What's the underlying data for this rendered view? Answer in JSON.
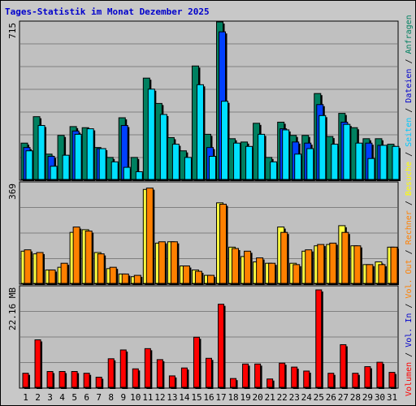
{
  "title": "Tages-Statistik im Monat Dezember 2025",
  "axis_max_labels": {
    "top": "715",
    "middle": "369",
    "bottom": "22.16 MB"
  },
  "right_labels": [
    {
      "text": "Anfragen",
      "color": "#008060"
    },
    {
      "text": "Dateien",
      "color": "#0000cc"
    },
    {
      "text": "Seiten",
      "color": "#00c8ff"
    },
    {
      "text": "Besuche",
      "color": "#ffff00"
    },
    {
      "text": "Rechner",
      "color": "#ff8000"
    },
    {
      "text": "Vol. Out",
      "color": "#ff8000"
    },
    {
      "text": "Vol. In",
      "color": "#0000cc"
    },
    {
      "text": "Volumen",
      "color": "#ff0000"
    }
  ],
  "colors": {
    "hits": "#008060",
    "files": "#0040ff",
    "pages": "#00e0ff",
    "visits": "#ffff40",
    "sites": "#ff8000",
    "volume": "#ff0000",
    "weekend": "#008060",
    "weekday": "#000000"
  },
  "chart_data": [
    {
      "type": "bar",
      "name": "requests-files-pages",
      "categories": [
        "1",
        "2",
        "3",
        "4",
        "5",
        "6",
        "7",
        "8",
        "9",
        "10",
        "11",
        "12",
        "13",
        "14",
        "15",
        "16",
        "17",
        "18",
        "19",
        "20",
        "21",
        "22",
        "23",
        "24",
        "25",
        "26",
        "27",
        "28",
        "29",
        "30",
        "31"
      ],
      "weekend_days": [
        6,
        7,
        13,
        14,
        20,
        21,
        27,
        28
      ],
      "ylim": [
        0,
        715
      ],
      "series": [
        {
          "name": "Anfragen",
          "values": [
            165,
            285,
            115,
            200,
            240,
            235,
            145,
            100,
            280,
            100,
            460,
            345,
            190,
            130,
            515,
            205,
            715,
            185,
            170,
            255,
            100,
            260,
            200,
            200,
            390,
            195,
            300,
            235,
            185,
            185,
            160
          ]
        },
        {
          "name": "Dateien",
          "values": [
            145,
            0,
            105,
            0,
            220,
            0,
            140,
            0,
            245,
            0,
            0,
            0,
            0,
            0,
            0,
            145,
            670,
            0,
            0,
            0,
            0,
            230,
            170,
            165,
            340,
            0,
            260,
            0,
            165,
            155,
            0
          ]
        },
        {
          "name": "Seiten",
          "values": [
            130,
            245,
            60,
            110,
            205,
            230,
            140,
            80,
            55,
            35,
            410,
            295,
            160,
            100,
            430,
            105,
            355,
            165,
            150,
            205,
            80,
            225,
            115,
            140,
            290,
            160,
            250,
            165,
            95,
            155,
            150
          ]
        }
      ]
    },
    {
      "type": "bar",
      "name": "visits-sites",
      "categories": [
        "1",
        "2",
        "3",
        "4",
        "5",
        "6",
        "7",
        "8",
        "9",
        "10",
        "11",
        "12",
        "13",
        "14",
        "15",
        "16",
        "17",
        "18",
        "19",
        "20",
        "21",
        "22",
        "23",
        "24",
        "25",
        "26",
        "27",
        "28",
        "29",
        "30",
        "31"
      ],
      "ylim": [
        0,
        369
      ],
      "series": [
        {
          "name": "Besuche",
          "values": [
            120,
            110,
            50,
            60,
            190,
            200,
            115,
            55,
            35,
            25,
            350,
            150,
            155,
            65,
            50,
            30,
            300,
            135,
            100,
            80,
            75,
            210,
            75,
            120,
            140,
            145,
            215,
            140,
            70,
            80,
            135
          ]
        },
        {
          "name": "Rechner",
          "values": [
            125,
            115,
            50,
            75,
            210,
            195,
            110,
            60,
            35,
            30,
            355,
            155,
            155,
            65,
            45,
            30,
            295,
            130,
            120,
            95,
            75,
            190,
            70,
            125,
            145,
            150,
            190,
            140,
            70,
            70,
            135
          ]
        }
      ]
    },
    {
      "type": "bar",
      "name": "volume",
      "unit": "MB",
      "categories": [
        "1",
        "2",
        "3",
        "4",
        "5",
        "6",
        "7",
        "8",
        "9",
        "10",
        "11",
        "12",
        "13",
        "14",
        "15",
        "16",
        "17",
        "18",
        "19",
        "20",
        "21",
        "22",
        "23",
        "24",
        "25",
        "26",
        "27",
        "28",
        "29",
        "30",
        "31"
      ],
      "ylim": [
        0,
        22.16
      ],
      "series": [
        {
          "name": "Volumen",
          "values": [
            3.2,
            10.8,
            3.6,
            3.6,
            3.6,
            3.2,
            2.3,
            6.5,
            8.5,
            4.2,
            8.8,
            6.3,
            2.6,
            4.4,
            11.4,
            6.6,
            18.9,
            2.0,
            5.3,
            5.3,
            1.9,
            5.5,
            4.6,
            3.7,
            22.16,
            3.2,
            9.7,
            3.2,
            4.7,
            5.7,
            3.4
          ]
        }
      ]
    }
  ]
}
